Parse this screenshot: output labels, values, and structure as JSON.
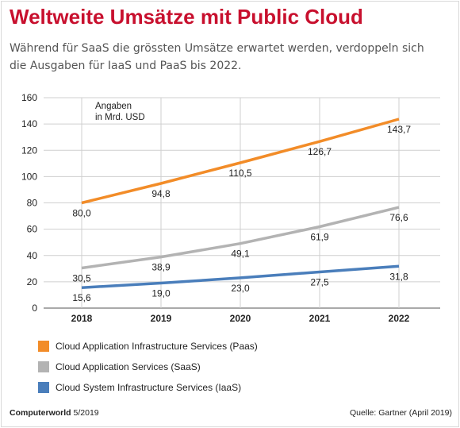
{
  "title": "Weltweite Umsätze mit Public Cloud",
  "subtitle": "Während für SaaS die grössten Umsätze erwartet werden, verdoppeln sich die Ausgaben für IaaS und PaaS bis 2022.",
  "footer": {
    "brand": "Computerworld",
    "issue": "5/2019",
    "source": "Quelle: Gartner (April 2019)"
  },
  "chart_data": {
    "type": "line",
    "unit_note_line1": "Angaben",
    "unit_note_line2": "in Mrd. USD",
    "x": [
      "2018",
      "2019",
      "2020",
      "2021",
      "2022"
    ],
    "ylim": [
      0,
      160
    ],
    "yticks": [
      0,
      20,
      40,
      60,
      80,
      100,
      120,
      140,
      160
    ],
    "grid": true,
    "legend_position": "bottom",
    "series": [
      {
        "name": "Cloud Application Infrastructure Services (Paas)",
        "color": "#f28c28",
        "values": [
          80.0,
          94.8,
          110.5,
          126.7,
          143.7
        ],
        "labels": [
          "80,0",
          "94,8",
          "110,5",
          "126,7",
          "143,7"
        ]
      },
      {
        "name": "Cloud Application Services (SaaS)",
        "color": "#b3b3b3",
        "values": [
          30.5,
          38.9,
          49.1,
          61.9,
          76.6
        ],
        "labels": [
          "30,5",
          "38,9",
          "49,1",
          "61,9",
          "76,6"
        ]
      },
      {
        "name": "Cloud System Infrastructure Services (IaaS)",
        "color": "#4a7ebb",
        "values": [
          15.6,
          19.0,
          23.0,
          27.5,
          31.8
        ],
        "labels": [
          "15,6",
          "19,0",
          "23,0",
          "27,5",
          "31,8"
        ]
      }
    ]
  }
}
